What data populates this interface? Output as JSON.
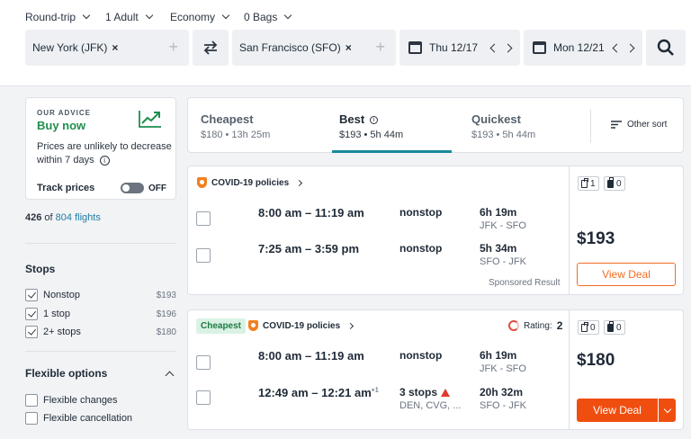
{
  "search": {
    "trip_type": "Round-trip",
    "passengers": "1 Adult",
    "cabin": "Economy",
    "bags": "0 Bags",
    "origin": "New York (JFK)",
    "destination": "San Francisco (SFO)",
    "depart_date": "Thu 12/17",
    "return_date": "Mon 12/21",
    "remove_symbol": "×",
    "add_symbol": "+"
  },
  "advice": {
    "label": "OUR ADVICE",
    "headline": "Buy now",
    "text": "Prices are unlikely to decrease within 7 days",
    "info_symbol": "i",
    "track_label": "Track prices",
    "toggle_state": "OFF"
  },
  "results_count": {
    "shown": "426",
    "of_text": "of",
    "total": "804 flights"
  },
  "stops_filter": {
    "title": "Stops",
    "items": [
      {
        "label": "Nonstop",
        "price": "$193",
        "checked": true
      },
      {
        "label": "1 stop",
        "price": "$196",
        "checked": true
      },
      {
        "label": "2+ stops",
        "price": "$180",
        "checked": true
      }
    ]
  },
  "flexible": {
    "title": "Flexible options",
    "items": [
      {
        "label": "Flexible changes"
      },
      {
        "label": "Flexible cancellation"
      }
    ]
  },
  "sort_tabs": [
    {
      "title": "Cheapest",
      "sub": "$180 • 13h 25m",
      "active": false
    },
    {
      "title": "Best",
      "sub": "$193 • 5h 44m",
      "active": true
    },
    {
      "title": "Quickest",
      "sub": "$193 • 5h 44m",
      "active": false
    }
  ],
  "other_sort": "Other sort",
  "results": [
    {
      "policy": "COVID-19 policies",
      "legs": [
        {
          "time": "8:00 am – 11:19 am",
          "stops": "nonstop",
          "duration": "6h 19m",
          "route": "JFK - SFO"
        },
        {
          "time": "7:25 am – 3:59 pm",
          "stops": "nonstop",
          "duration": "5h 34m",
          "route": "SFO - JFK"
        }
      ],
      "bags": [
        "1",
        "0"
      ],
      "price": "$193",
      "deal": "View Deal",
      "note": "Sponsored Result"
    },
    {
      "badge": "Cheapest",
      "policy": "COVID-19 policies",
      "rating_label": "Rating:",
      "rating_value": "2",
      "legs": [
        {
          "time": "8:00 am – 11:19 am",
          "stops": "nonstop",
          "duration": "6h 19m",
          "route": "JFK - SFO"
        },
        {
          "time": "12:49 am – 12:21 am",
          "superscript": "+1",
          "stops": "3 stops",
          "airports": "DEN, CVG, ...",
          "duration": "20h 32m",
          "route": "SFO - JFK"
        }
      ],
      "bags": [
        "0",
        "0"
      ],
      "price": "$180",
      "deal": "View Deal"
    }
  ],
  "colors": {
    "accent": "#f04e0f",
    "best_underline": "#1a8a9b",
    "advice_green": "#1f8f4e",
    "link": "#1f7da6"
  }
}
